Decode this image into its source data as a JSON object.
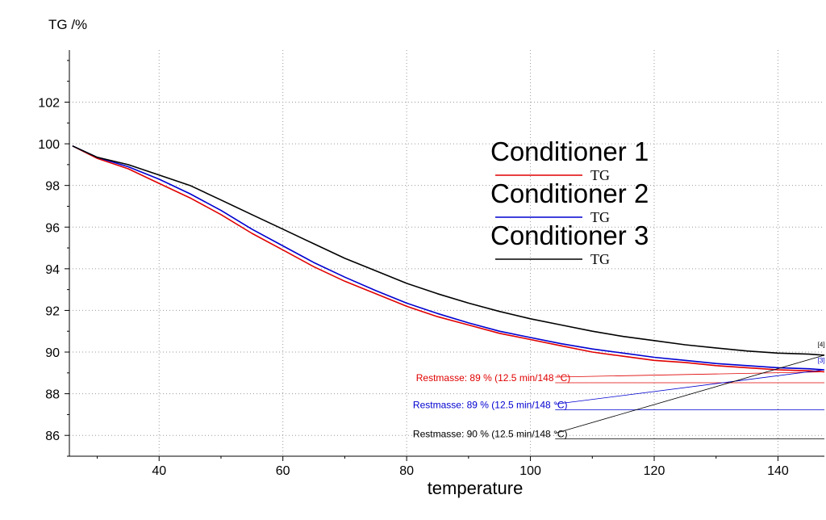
{
  "chart_data": {
    "type": "line",
    "ylabel": "TG /%",
    "xlabel": "temperature",
    "xlim": [
      25.5,
      147.5
    ],
    "ylim": [
      85,
      104.5
    ],
    "x_ticks": [
      40,
      60,
      80,
      100,
      120,
      140
    ],
    "y_ticks": [
      86,
      88,
      90,
      92,
      94,
      96,
      98,
      100,
      102
    ],
    "grid": true,
    "legend_placement": "center-right",
    "series": [
      {
        "name": "Conditioner 1",
        "legend_suffix": "TG",
        "color": "#e00000",
        "x": [
          26,
          30,
          35,
          40,
          45,
          50,
          55,
          60,
          65,
          70,
          75,
          80,
          85,
          90,
          95,
          100,
          105,
          110,
          115,
          120,
          125,
          130,
          135,
          140,
          145,
          147.5
        ],
        "y": [
          99.9,
          99.3,
          98.8,
          98.1,
          97.4,
          96.6,
          95.7,
          94.9,
          94.1,
          93.4,
          92.8,
          92.2,
          91.7,
          91.3,
          90.9,
          90.6,
          90.3,
          90.0,
          89.8,
          89.6,
          89.5,
          89.35,
          89.25,
          89.15,
          89.1,
          89.05
        ]
      },
      {
        "name": "Conditioner 2",
        "legend_suffix": "TG",
        "color": "#0000d0",
        "x": [
          26,
          30,
          35,
          40,
          45,
          50,
          55,
          60,
          65,
          70,
          75,
          80,
          85,
          90,
          95,
          100,
          105,
          110,
          115,
          120,
          125,
          130,
          135,
          140,
          145,
          147.5
        ],
        "y": [
          99.9,
          99.35,
          98.9,
          98.3,
          97.6,
          96.8,
          95.9,
          95.1,
          94.3,
          93.6,
          92.95,
          92.35,
          91.85,
          91.4,
          91.0,
          90.7,
          90.4,
          90.15,
          89.95,
          89.75,
          89.6,
          89.45,
          89.35,
          89.25,
          89.2,
          89.15
        ]
      },
      {
        "name": "Conditioner 3",
        "legend_suffix": "TG",
        "color": "#000000",
        "x": [
          26,
          30,
          35,
          40,
          45,
          50,
          55,
          60,
          65,
          70,
          75,
          80,
          85,
          90,
          95,
          100,
          105,
          110,
          115,
          120,
          125,
          130,
          135,
          140,
          145,
          147.5
        ],
        "y": [
          99.9,
          99.35,
          99.0,
          98.5,
          98.0,
          97.3,
          96.6,
          95.9,
          95.2,
          94.5,
          93.9,
          93.3,
          92.8,
          92.35,
          91.95,
          91.6,
          91.3,
          91.0,
          90.75,
          90.55,
          90.35,
          90.2,
          90.05,
          89.95,
          89.9,
          89.85
        ]
      }
    ],
    "annotations": [
      {
        "text_value": "Restmasse: 89 %",
        "text_cond": "(12.5 min/148 °C)",
        "color": "#e00000",
        "label_x": 94,
        "label_y": 88.8,
        "line_x": 104,
        "line_y": 88.8,
        "target_x": 147.5,
        "target_y": 89.05
      },
      {
        "text_value": "Restmasse: 89 %",
        "text_cond": "(12.5 min/148 °C)",
        "color": "#0000d0",
        "label_x": 93.5,
        "label_y": 87.5,
        "line_x": 104,
        "line_y": 87.5,
        "target_x": 147.5,
        "target_y": 89.15
      },
      {
        "text_value": "Restmasse: 90 %",
        "text_cond": "(12.5 min/148 °C)",
        "color": "#000000",
        "label_x": 93.5,
        "label_y": 86.1,
        "line_x": 104,
        "line_y": 86.1,
        "target_x": 147.5,
        "target_y": 89.85
      }
    ],
    "end_tags": [
      {
        "text": "[4]",
        "color": "#000000",
        "x": 147,
        "y": 90.25
      },
      {
        "text": "[3]",
        "color": "#0000d0",
        "x": 147,
        "y": 89.5
      }
    ]
  }
}
